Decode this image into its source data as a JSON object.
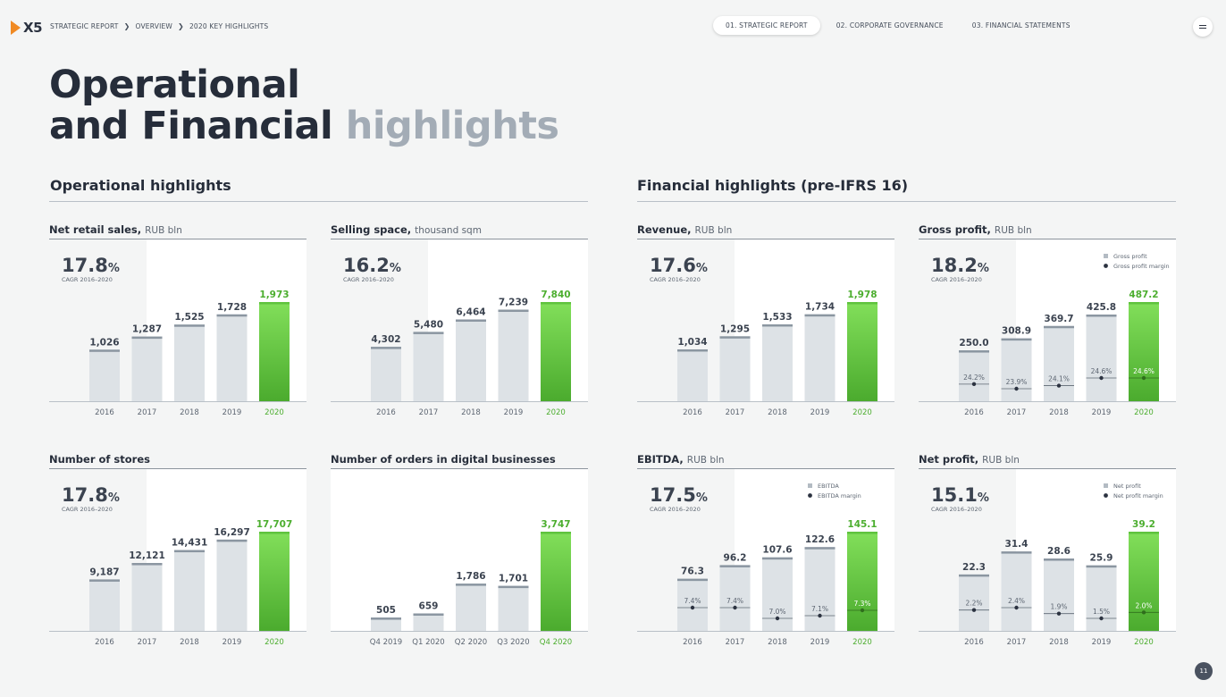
{
  "header": {
    "logo_text": "X5",
    "breadcrumbs": [
      "STRATEGIC REPORT",
      "OVERVIEW",
      "2020 KEY HIGHLIGHTS"
    ],
    "tabs": [
      "01. STRATEGIC REPORT",
      "02. CORPORATE GOVERNANCE",
      "03. FINANCIAL STATEMENTS"
    ],
    "active_tab": 0,
    "logo_color": "#f08a24"
  },
  "page": {
    "title_line1": "Operational",
    "title_line2_a": "and Financial",
    "title_line2_b": "highlights",
    "section_operational": "Operational highlights",
    "section_financial": "Financial highlights (pre-IFRS 16)",
    "page_number": "11"
  },
  "colors": {
    "bar": "#dde2e6",
    "bar_cap": "#8b96a1",
    "highlight_top": "#82df5a",
    "highlight_bottom": "#4bab2e",
    "highlight_text": "#4cae2f",
    "text": "#2b3240"
  },
  "chart_data": [
    {
      "id": "net-retail-sales",
      "type": "bar",
      "title": "Net retail sales,",
      "unit": "RUB bln",
      "cagr": "17.8",
      "cagr_label": "CAGR 2016–2020",
      "categories": [
        "2016",
        "2017",
        "2018",
        "2019",
        "2020"
      ],
      "values": [
        1026,
        1287,
        1525,
        1728,
        1973
      ],
      "labels": [
        "1,026",
        "1,287",
        "1,525",
        "1,728",
        "1,973"
      ],
      "ylim": [
        0,
        1973
      ],
      "highlight_index": 4
    },
    {
      "id": "selling-space",
      "type": "bar",
      "title": "Selling space,",
      "unit": "thousand sqm",
      "cagr": "16.2",
      "cagr_label": "CAGR 2016–2020",
      "categories": [
        "2016",
        "2017",
        "2018",
        "2019",
        "2020"
      ],
      "values": [
        4302,
        5480,
        6464,
        7239,
        7840
      ],
      "labels": [
        "4,302",
        "5,480",
        "6,464",
        "7,239",
        "7,840"
      ],
      "ylim": [
        0,
        7840
      ],
      "highlight_index": 4
    },
    {
      "id": "revenue",
      "type": "bar",
      "title": "Revenue,",
      "unit": "RUB bln",
      "cagr": "17.6",
      "cagr_label": "CAGR 2016–2020",
      "categories": [
        "2016",
        "2017",
        "2018",
        "2019",
        "2020"
      ],
      "values": [
        1034,
        1295,
        1533,
        1734,
        1978
      ],
      "labels": [
        "1,034",
        "1,295",
        "1,533",
        "1,734",
        "1,978"
      ],
      "ylim": [
        0,
        1978
      ],
      "highlight_index": 4
    },
    {
      "id": "gross-profit",
      "type": "bar",
      "title": "Gross profit,",
      "unit": "RUB bln",
      "cagr": "18.2",
      "cagr_label": "CAGR 2016–2020",
      "categories": [
        "2016",
        "2017",
        "2018",
        "2019",
        "2020"
      ],
      "values": [
        250.0,
        308.9,
        369.7,
        425.8,
        487.2
      ],
      "labels": [
        "250.0",
        "308.9",
        "369.7",
        "425.8",
        "487.2"
      ],
      "ylim": [
        0,
        487.2
      ],
      "highlight_index": 4,
      "margins": [
        24.2,
        23.9,
        24.1,
        24.6,
        24.6
      ],
      "margin_labels": [
        "24.2%",
        "23.9%",
        "24.1%",
        "24.6%",
        "24.6%"
      ],
      "legend": [
        "Gross profit",
        "Gross profit margin"
      ]
    },
    {
      "id": "number-of-stores",
      "type": "bar",
      "title": "Number of stores",
      "unit": "",
      "cagr": "17.8",
      "cagr_label": "CAGR 2016–2020",
      "categories": [
        "2016",
        "2017",
        "2018",
        "2019",
        "2020"
      ],
      "values": [
        9187,
        12121,
        14431,
        16297,
        17707
      ],
      "labels": [
        "9,187",
        "12,121",
        "14,431",
        "16,297",
        "17,707"
      ],
      "ylim": [
        0,
        17707
      ],
      "highlight_index": 4
    },
    {
      "id": "digital-orders",
      "type": "bar",
      "title": "Number of orders in digital businesses",
      "unit": "",
      "categories": [
        "Q4 2019",
        "Q1 2020",
        "Q2 2020",
        "Q3 2020",
        "Q4 2020"
      ],
      "values": [
        505,
        659,
        1786,
        1701,
        3747
      ],
      "labels": [
        "505",
        "659",
        "1,786",
        "1,701",
        "3,747"
      ],
      "ylim": [
        0,
        3747
      ],
      "highlight_index": 4
    },
    {
      "id": "ebitda",
      "type": "bar",
      "title": "EBITDA,",
      "unit": "RUB bln",
      "cagr": "17.5",
      "cagr_label": "CAGR 2016–2020",
      "categories": [
        "2016",
        "2017",
        "2018",
        "2019",
        "2020"
      ],
      "values": [
        76.3,
        96.2,
        107.6,
        122.6,
        145.1
      ],
      "labels": [
        "76.3",
        "96.2",
        "107.6",
        "122.6",
        "145.1"
      ],
      "ylim": [
        0,
        145.1
      ],
      "highlight_index": 4,
      "margins": [
        7.4,
        7.4,
        7.0,
        7.1,
        7.3
      ],
      "margin_labels": [
        "7.4%",
        "7.4%",
        "7.0%",
        "7.1%",
        "7.3%"
      ],
      "legend": [
        "EBITDA",
        "EBITDA margin"
      ]
    },
    {
      "id": "net-profit",
      "type": "bar",
      "title": "Net profit,",
      "unit": "RUB bln",
      "cagr": "15.1",
      "cagr_label": "CAGR 2016–2020",
      "categories": [
        "2016",
        "2017",
        "2018",
        "2019",
        "2020"
      ],
      "values": [
        22.3,
        31.4,
        28.6,
        25.9,
        39.2
      ],
      "labels": [
        "22.3",
        "31.4",
        "28.6",
        "25.9",
        "39.2"
      ],
      "ylim": [
        0,
        39.2
      ],
      "highlight_index": 4,
      "margins": [
        2.2,
        2.4,
        1.9,
        1.5,
        2.0
      ],
      "margin_labels": [
        "2.2%",
        "2.4%",
        "1.9%",
        "1.5%",
        "2.0%"
      ],
      "legend": [
        "Net profit",
        "Net profit margin"
      ]
    }
  ]
}
